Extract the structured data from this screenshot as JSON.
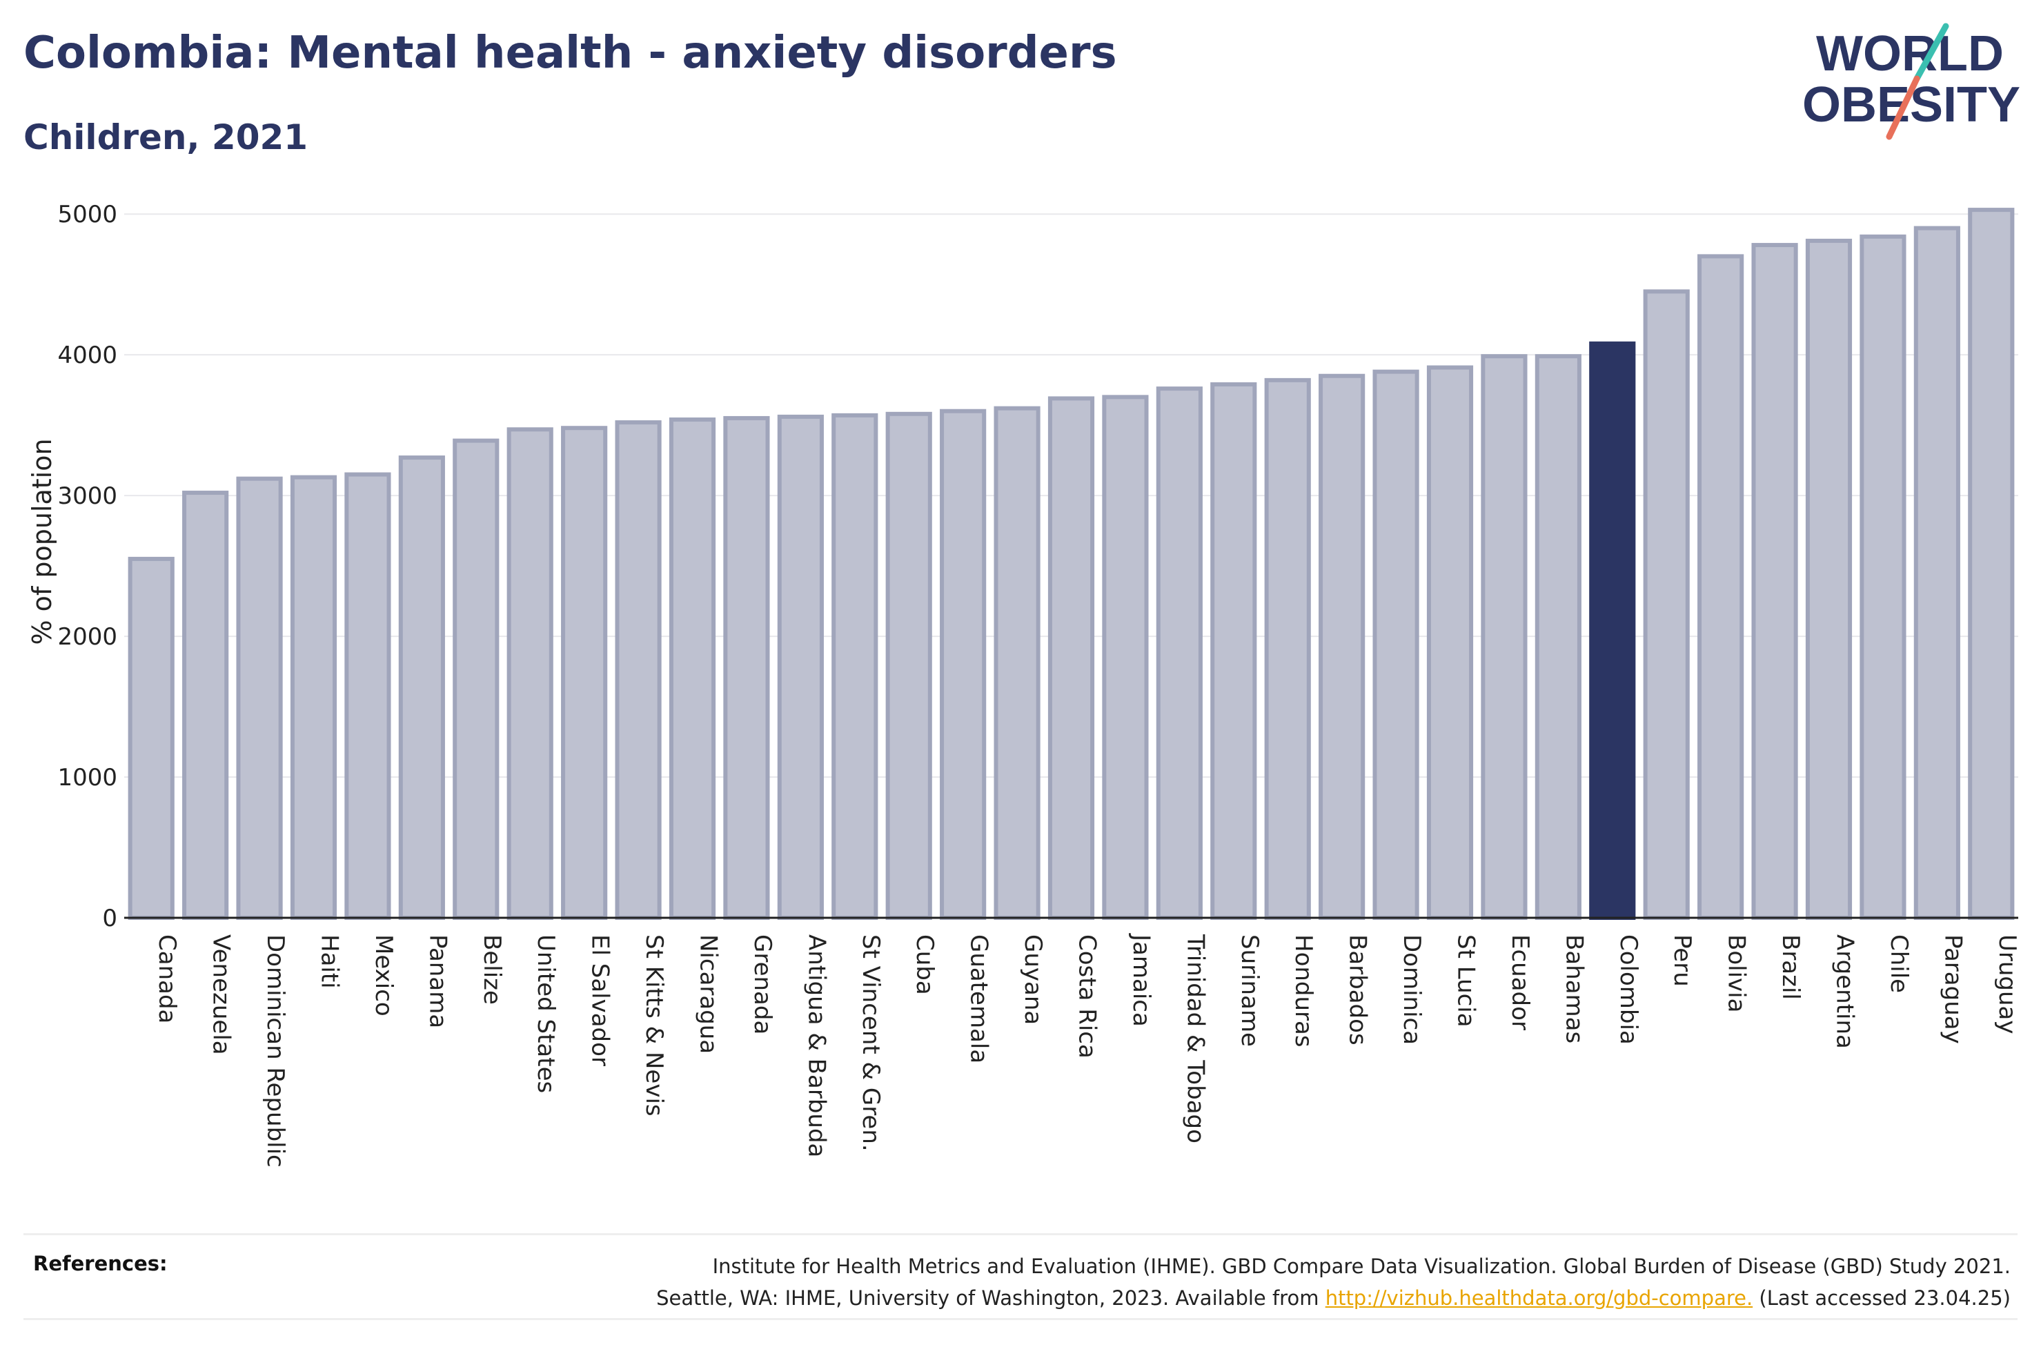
{
  "title": "Colombia: Mental health - anxiety disorders",
  "subtitle": "Children, 2021",
  "logo": {
    "line1": "WORLD",
    "line2": "OBESITY",
    "colors": {
      "text": "#2b3563",
      "slash_top": "#3bbfb0",
      "slash_bottom": "#e8705a"
    }
  },
  "colors": {
    "bar_default": "#bec1d0",
    "bar_default_stroke": "#a0a5bb",
    "bar_highlight": "#2b3563",
    "axis_text": "#222222",
    "grid": "#e8e8ec"
  },
  "chart_data": {
    "type": "bar",
    "ylabel": "% of population",
    "xlabel": "",
    "ylim": [
      0,
      5050
    ],
    "yticks": [
      0,
      1000,
      2000,
      3000,
      4000,
      5000
    ],
    "grid": true,
    "highlight": "Colombia",
    "categories": [
      "Canada",
      "Venezuela",
      "Dominican Republic",
      "Haiti",
      "Mexico",
      "Panama",
      "Belize",
      "United States",
      "El Salvador",
      "St Kitts & Nevis",
      "Nicaragua",
      "Grenada",
      "Antigua & Barbuda",
      "St Vincent & Gren.",
      "Cuba",
      "Guatemala",
      "Guyana",
      "Costa Rica",
      "Jamaica",
      "Trinidad & Tobago",
      "Suriname",
      "Honduras",
      "Barbados",
      "Dominica",
      "St Lucia",
      "Ecuador",
      "Bahamas",
      "Colombia",
      "Peru",
      "Bolivia",
      "Brazil",
      "Argentina",
      "Chile",
      "Paraguay",
      "Uruguay"
    ],
    "values": [
      2550,
      3020,
      3120,
      3130,
      3150,
      3270,
      3390,
      3470,
      3480,
      3520,
      3540,
      3550,
      3560,
      3570,
      3580,
      3600,
      3620,
      3690,
      3700,
      3760,
      3790,
      3820,
      3850,
      3880,
      3910,
      3990,
      3990,
      4080,
      4450,
      4700,
      4780,
      4810,
      4840,
      4900,
      5030
    ]
  },
  "references": {
    "label": "References:",
    "line1": "Institute for Health Metrics and Evaluation (IHME). GBD Compare Data Visualization. Global Burden of Disease (GBD) Study 2021.",
    "line2_before": "Seattle, WA: IHME, University of Washington, 2023. Available from ",
    "link": "http://vizhub.healthdata.org/gbd-compare.",
    "line2_after": " (Last accessed 23.04.25)"
  }
}
